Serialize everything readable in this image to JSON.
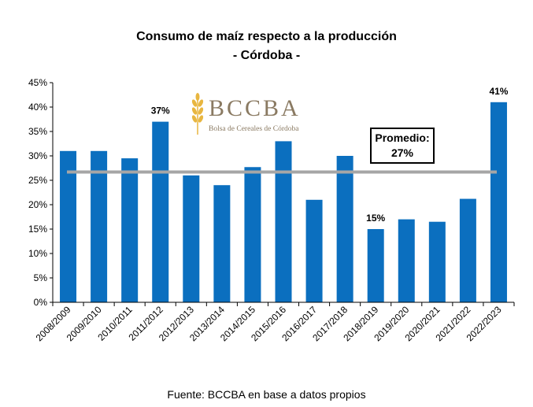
{
  "title_line1": "Consumo de maíz respecto a la producción",
  "title_line2": "- Córdoba -",
  "source": "Fuente: BCCBA en base a datos propios",
  "logo": {
    "name": "BCCBA",
    "subtitle": "Bolsa de Cereales de Córdoba",
    "icon": "wheat-icon"
  },
  "average_box": {
    "label": "Promedio:",
    "value": "27%"
  },
  "colors": {
    "bar": "#0b6fbf",
    "average_line": "#a6a6a6",
    "logo": "#8a7a62",
    "wheat": "#e8b640"
  },
  "chart_data": {
    "type": "bar",
    "title": "Consumo de maíz respecto a la producción - Córdoba -",
    "categories": [
      "2008/2009",
      "2009/2010",
      "2010/2011",
      "2011/2012",
      "2012/2013",
      "2013/2014",
      "2014/2015",
      "2015/2016",
      "2016/2017",
      "2017/2018",
      "2018/2019",
      "2019/2020",
      "2020/2021",
      "2021/2022",
      "2022/2023"
    ],
    "values": [
      31,
      31,
      29.5,
      37,
      26,
      24,
      27.7,
      33,
      21,
      30,
      15,
      17,
      16.5,
      21.2,
      41
    ],
    "data_labels": {
      "3": "37%",
      "10": "15%",
      "14": "41%"
    },
    "average": 26.7,
    "ylim": [
      0,
      45
    ],
    "yticks": [
      0,
      5,
      10,
      15,
      20,
      25,
      30,
      35,
      40,
      45
    ],
    "ytick_labels": [
      "0%",
      "5%",
      "10%",
      "15%",
      "20%",
      "25%",
      "30%",
      "35%",
      "40%",
      "45%"
    ],
    "xlabel": "",
    "ylabel": "",
    "grid": false,
    "legend": "none"
  }
}
